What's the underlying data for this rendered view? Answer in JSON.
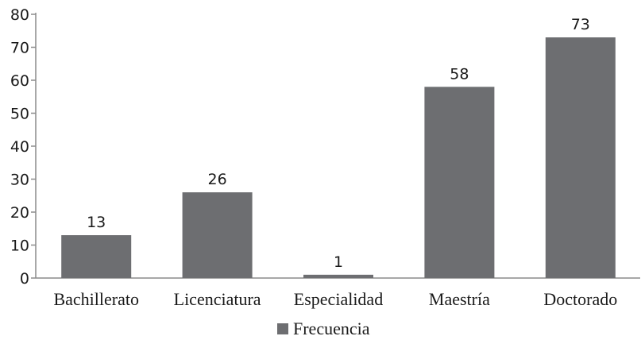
{
  "chart_data": {
    "type": "bar",
    "categories": [
      "Bachillerato",
      "Licenciatura",
      "Especialidad",
      "Maestría",
      "Doctorado"
    ],
    "series": [
      {
        "name": "Frecuencia",
        "values": [
          13,
          26,
          1,
          58,
          73
        ],
        "color": "#6d6e71"
      }
    ],
    "data_labels": [
      "13",
      "26",
      "1",
      "58",
      "73"
    ],
    "ylim": [
      0,
      80
    ],
    "yticks": [
      0,
      10,
      20,
      30,
      40,
      50,
      60,
      70,
      80
    ],
    "grid": false,
    "legend": {
      "position": "bottom",
      "entries": [
        "Frecuencia"
      ]
    },
    "colors": {
      "bar": "#6d6e71",
      "axis": "#8c8c8c",
      "text": "#1a1a1a"
    }
  }
}
